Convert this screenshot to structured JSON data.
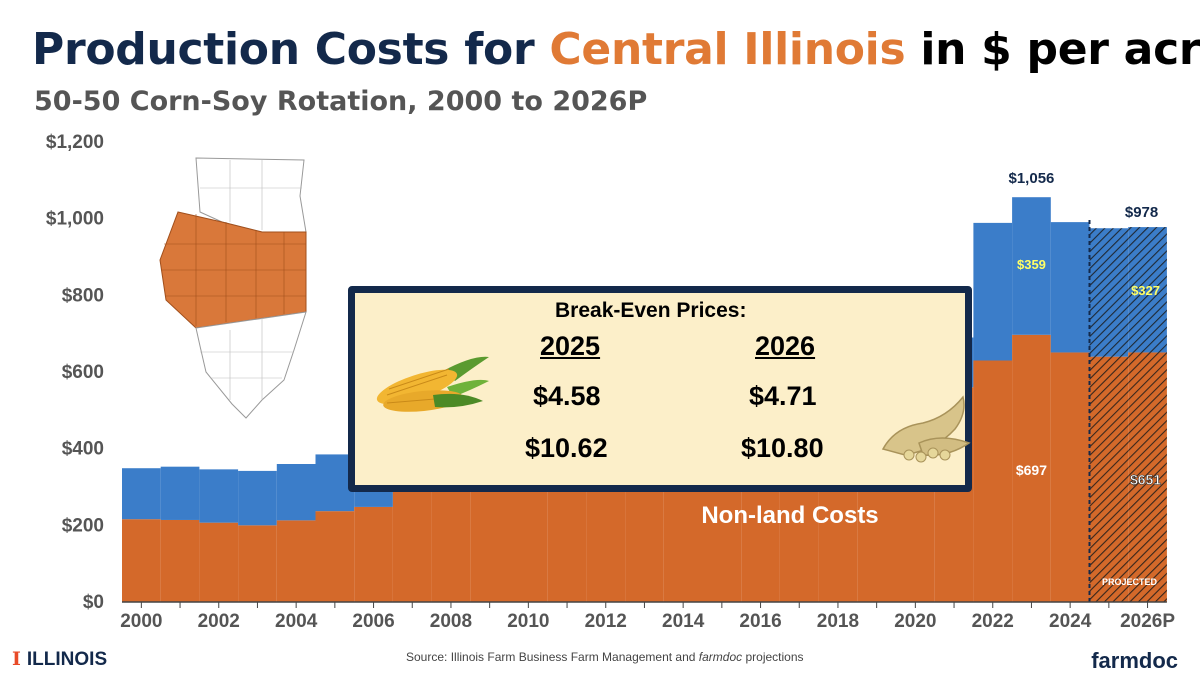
{
  "title": {
    "part1": "Production Costs for ",
    "highlight": "Central Illinois",
    "part2": " in $ per acre"
  },
  "subtitle": "50-50 Corn-Soy Rotation, 2000 to 2026P",
  "chart_data": {
    "type": "bar",
    "stacked": true,
    "categories": [
      "2000",
      "2001",
      "2002",
      "2003",
      "2004",
      "2005",
      "2006",
      "2007",
      "2008",
      "2009",
      "2010",
      "2011",
      "2012",
      "2013",
      "2014",
      "2015",
      "2016",
      "2017",
      "2018",
      "2019",
      "2020",
      "2021",
      "2022",
      "2023",
      "2024",
      "2025",
      "2026P"
    ],
    "tick_labels": [
      "2000",
      "2002",
      "2004",
      "2006",
      "2008",
      "2010",
      "2012",
      "2014",
      "2016",
      "2018",
      "2020",
      "2022",
      "2024",
      "2026P"
    ],
    "series": [
      {
        "name": "Non-land Costs",
        "color": "#d4692a",
        "values": [
          216,
          214,
          207,
          200,
          213,
          237,
          248,
          290,
          320,
          330,
          330,
          360,
          400,
          440,
          460,
          470,
          480,
          490,
          500,
          520,
          540,
          560,
          630,
          697,
          651,
          640,
          651
        ]
      },
      {
        "name": "",
        "color": "#3b7dc9",
        "values": [
          133,
          139,
          139,
          142,
          147,
          148,
          150,
          110,
          100,
          100,
          100,
          120,
          150,
          170,
          150,
          140,
          130,
          120,
          120,
          120,
          120,
          130,
          359,
          359,
          340,
          335,
          327
        ]
      }
    ],
    "projected_from": "2025",
    "projected_label": "PROJECTED",
    "series_label": "Non-land Costs",
    "data_labels": {
      "total_2023": "$1,056",
      "total_2026P": "$978",
      "land_2023": "$359",
      "land_2026P": "$327",
      "nonland_2023": "$697",
      "nonland_2026P": "$651"
    },
    "yticks": [
      "$0",
      "$200",
      "$400",
      "$600",
      "$800",
      "$1,000",
      "$1,200"
    ],
    "ylim": [
      0,
      1200
    ],
    "xlabel": "",
    "ylabel": ""
  },
  "breakeven": {
    "title": "Break-Even Prices:",
    "year1": "2025",
    "year2": "2026",
    "corn1": "$4.58",
    "corn2": "$4.71",
    "soy1": "$10.62",
    "soy2": "$10.80"
  },
  "footer": {
    "logo_mark": "I",
    "logo_text": "ILLINOIS",
    "source_prefix": "Source:  Illinois Farm Business Farm Management and ",
    "source_italic": "farmdoc",
    "source_suffix": " projections",
    "brand": "farmdoc"
  },
  "colors": {
    "navy": "#13294b",
    "orange": "#d4692a",
    "blue": "#3b7dc9",
    "highlight_label": "#ffff66"
  }
}
